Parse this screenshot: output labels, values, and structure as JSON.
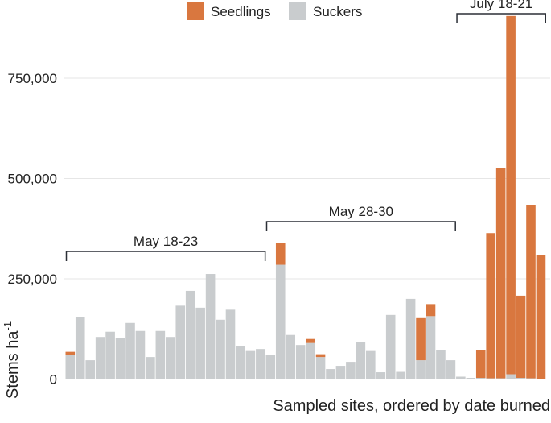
{
  "chart_data": {
    "type": "bar",
    "stacked": true,
    "xlabel": "Sampled sites, ordered by date burned",
    "ylabel": "Stems ha",
    "ylabel_superscript": "-1",
    "ylim": [
      0,
      900000
    ],
    "yticks": [
      0,
      250000,
      500000,
      750000
    ],
    "ytick_labels": [
      "0",
      "250,000",
      "500,000",
      "750,000"
    ],
    "grid": true,
    "legend_position": "top",
    "colors": {
      "Seedlings": "#d9773f",
      "Suckers": "#c9ccce",
      "bracket": "#2b2f36",
      "grid": "#e6e6e6",
      "text": "#222222"
    },
    "series": [
      {
        "name": "Seedlings",
        "values": [
          8000,
          0,
          0,
          0,
          0,
          0,
          0,
          0,
          0,
          0,
          0,
          0,
          0,
          0,
          0,
          0,
          0,
          0,
          0,
          0,
          0,
          55000,
          0,
          0,
          10000,
          7000,
          0,
          0,
          0,
          0,
          0,
          0,
          0,
          0,
          0,
          105000,
          30000,
          0,
          0,
          0,
          0,
          70000,
          362000,
          525000,
          893000,
          205000,
          432000,
          309000
        ]
      },
      {
        "name": "Suckers",
        "values": [
          60000,
          155000,
          47000,
          105000,
          118000,
          103000,
          140000,
          120000,
          55000,
          120000,
          105000,
          183000,
          220000,
          178000,
          262000,
          148000,
          173000,
          83000,
          70000,
          75000,
          60000,
          285000,
          110000,
          85000,
          90000,
          55000,
          25000,
          33000,
          43000,
          92000,
          70000,
          17000,
          160000,
          18000,
          200000,
          47000,
          157000,
          72000,
          47000,
          6000,
          3000,
          3000,
          2000,
          2000,
          12000,
          3000,
          2000,
          0
        ]
      }
    ],
    "annotations": [
      {
        "text": "May 18-23",
        "from_site": 0,
        "to_site": 19
      },
      {
        "text": "May 28-30",
        "from_site": 20,
        "to_site": 38
      },
      {
        "text": "July 18-21",
        "from_site": 39,
        "to_site": 47
      }
    ]
  }
}
